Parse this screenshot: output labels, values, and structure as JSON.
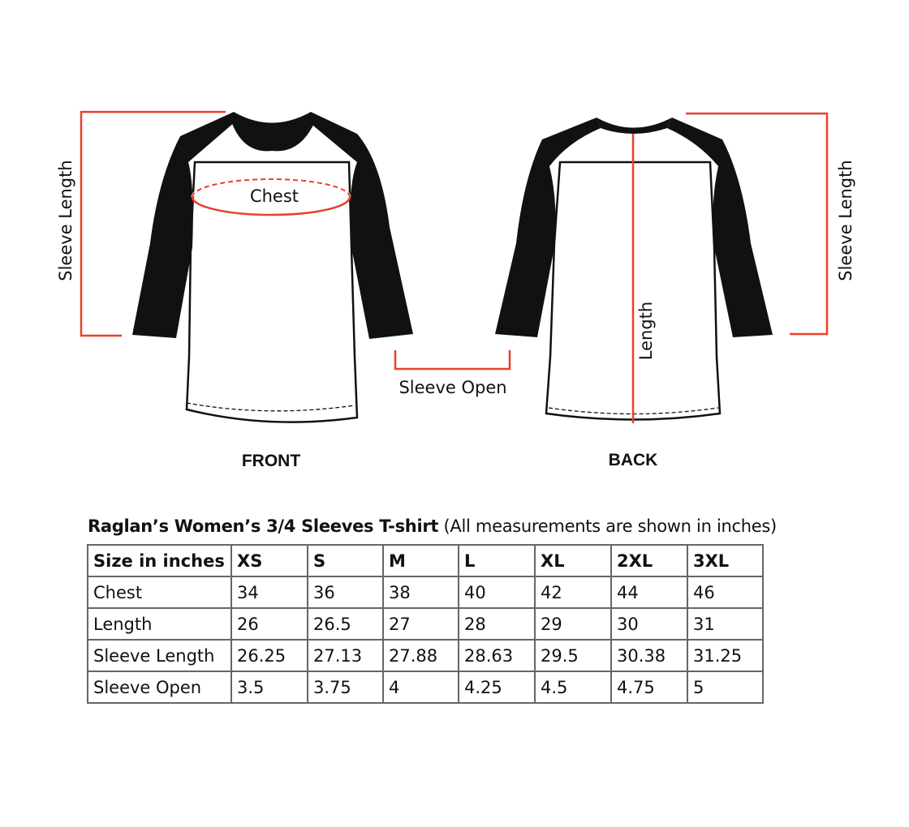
{
  "diagram": {
    "front_label": "FRONT",
    "back_label": "BACK",
    "chest_label": "Chest",
    "sleeve_length_label": "Sleeve Length",
    "sleeve_open_label": "Sleeve Open",
    "length_label": "Length",
    "colors": {
      "measure_line": "#e8412b",
      "sleeve": "#111111",
      "body": "#ffffff"
    }
  },
  "table": {
    "title_bold": "Raglan’s Women’s 3/4 Sleeves T-shirt",
    "title_note": "(All measurements are shown in inches)",
    "headers": [
      "Size in inches",
      "XS",
      "S",
      "M",
      "L",
      "XL",
      "2XL",
      "3XL"
    ],
    "rows": [
      [
        "Chest",
        "34",
        "36",
        "38",
        "40",
        "42",
        "44",
        "46"
      ],
      [
        "Length",
        "26",
        "26.5",
        "27",
        "28",
        "29",
        "30",
        "31"
      ],
      [
        "Sleeve Length",
        "26.25",
        "27.13",
        "27.88",
        "28.63",
        "29.5",
        "30.38",
        "31.25"
      ],
      [
        "Sleeve Open",
        "3.5",
        "3.75",
        "4",
        "4.25",
        "4.5",
        "4.75",
        "5"
      ]
    ]
  }
}
